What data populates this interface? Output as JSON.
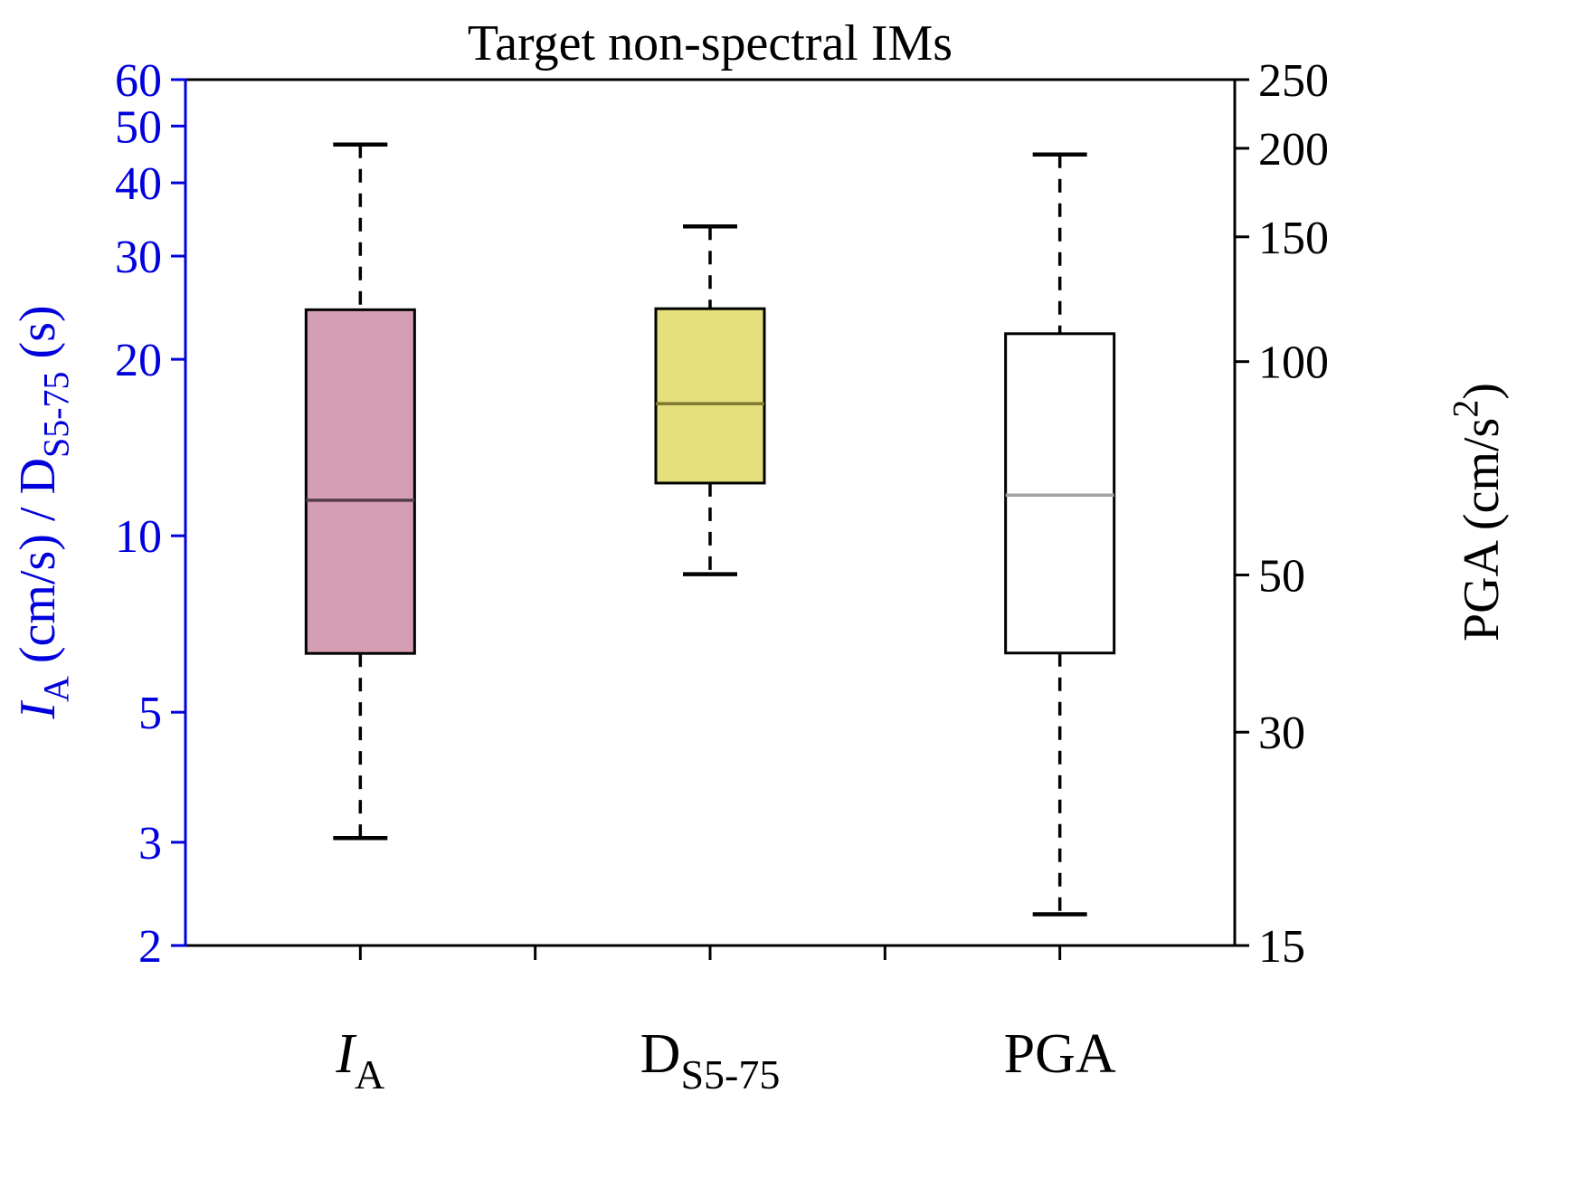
{
  "chart_data": {
    "type": "boxplot",
    "title": "Target non-spectral IMs",
    "layout": {
      "grid": false,
      "orientation": "vertical",
      "whisker_style": "dashed",
      "legend": "none"
    },
    "categories": [
      {
        "main": "I",
        "italic": true,
        "sub": "A"
      },
      {
        "main": "D",
        "italic": false,
        "sub": "S5-75"
      },
      {
        "main": "PGA",
        "italic": false,
        "sub": ""
      }
    ],
    "axes": {
      "left": {
        "scale": "log",
        "min": 2,
        "max": 60,
        "ticks": [
          60,
          50,
          40,
          30,
          20,
          10,
          5,
          3,
          2
        ],
        "color": "#0000dd",
        "label_text": "IA (cm/s) / DS5-75 (s)",
        "label_parts": [
          {
            "text": "I",
            "italic": true
          },
          {
            "text": "A",
            "sub": true
          },
          {
            "text": " (cm/s) / D"
          },
          {
            "text": "S5-75",
            "sub": true
          },
          {
            "text": " (s)"
          }
        ]
      },
      "right": {
        "scale": "log",
        "min": 15,
        "max": 250,
        "ticks": [
          250,
          200,
          150,
          100,
          50,
          30,
          15
        ],
        "color": "#000000",
        "label_text": "PGA (cm/s2)",
        "label_parts": [
          {
            "text": "PGA (cm/s"
          },
          {
            "text": "2",
            "sup": true
          },
          {
            "text": ")"
          }
        ]
      }
    },
    "series": [
      {
        "name": "IA",
        "axis": "left",
        "whisker_low": 3.05,
        "q1": 6.3,
        "median": 11.5,
        "q3": 24.3,
        "whisker_high": 46.5,
        "fill": "#d69eb4",
        "median_color": "#533d4a"
      },
      {
        "name": "DS5-75",
        "axis": "left",
        "whisker_low": 8.6,
        "q1": 12.3,
        "median": 16.8,
        "q3": 24.4,
        "whisker_high": 33.7,
        "fill": "#e5df7d",
        "median_color": "#7d7734"
      },
      {
        "name": "PGA",
        "axis": "right",
        "whisker_low": 16.6,
        "q1": 38.8,
        "median": 64.8,
        "q3": 109.5,
        "whisker_high": 196,
        "fill": "#ffffff",
        "median_color": "#a3a3a3"
      }
    ]
  }
}
